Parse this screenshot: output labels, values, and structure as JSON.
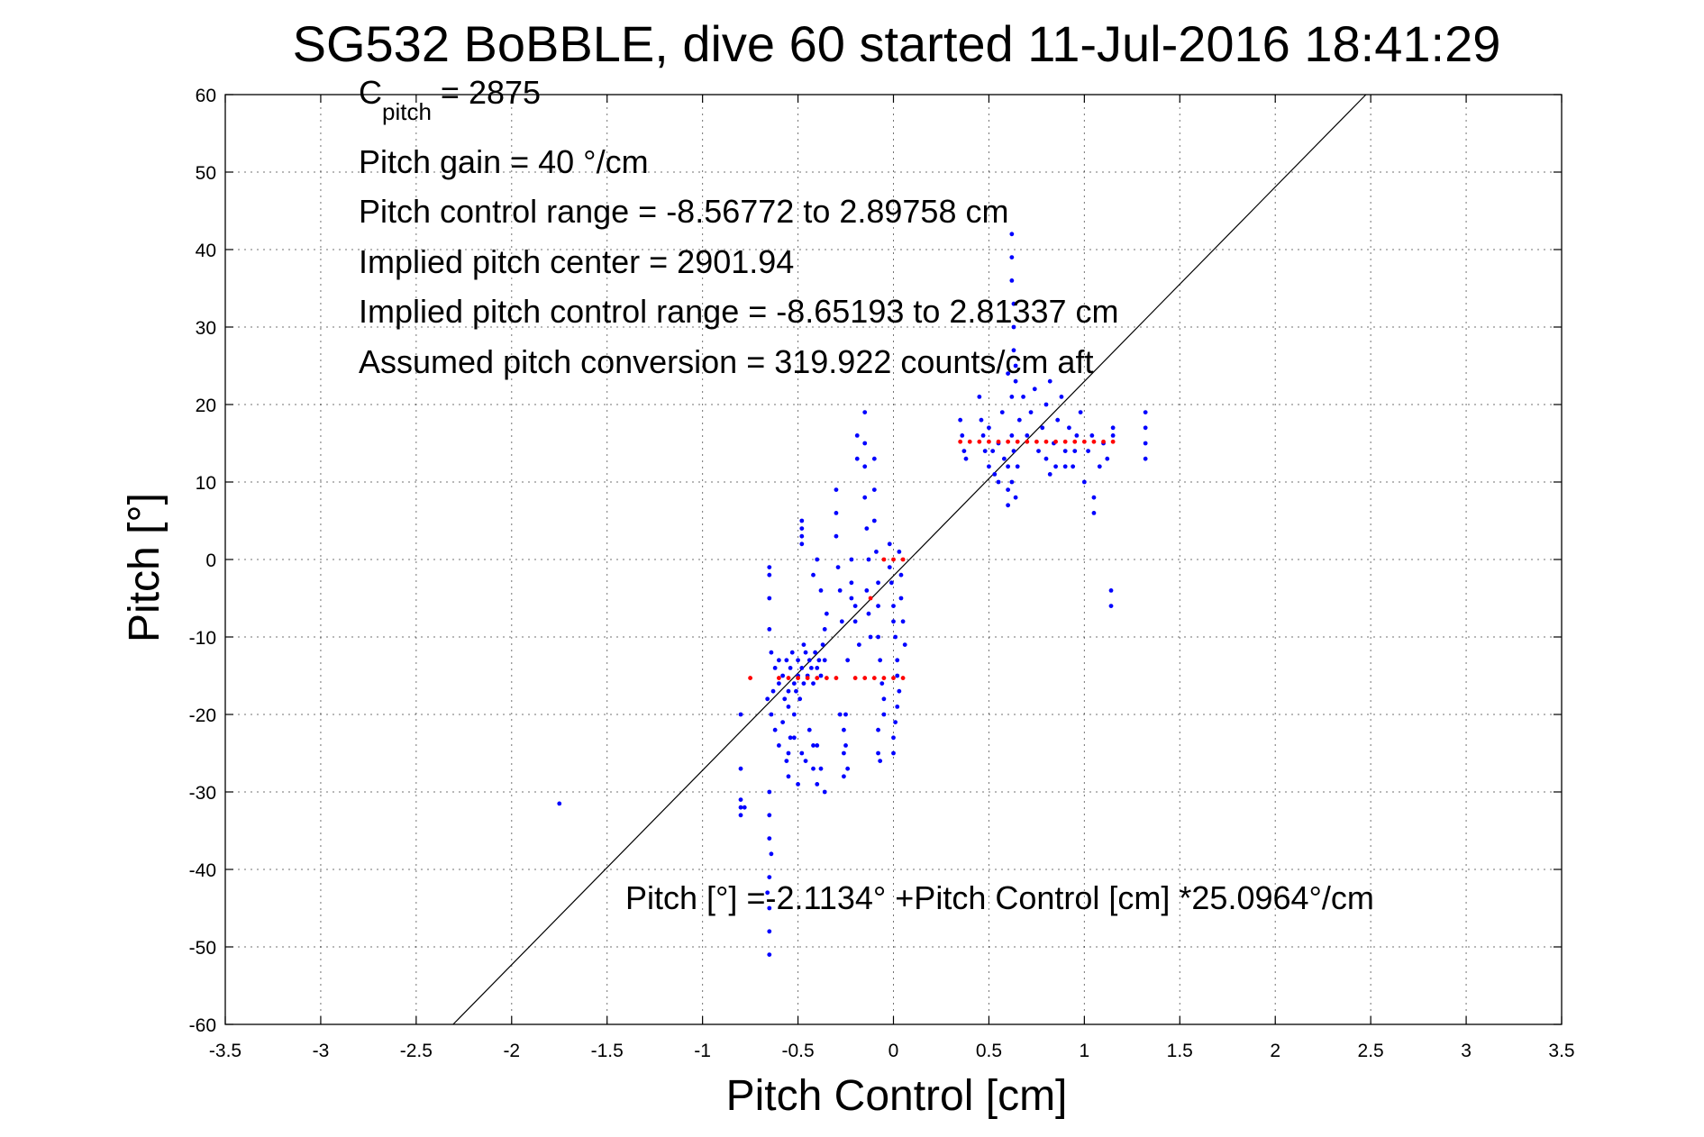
{
  "chart_data": {
    "type": "scatter",
    "title": "SG532 BoBBLE, dive 60 started 11-Jul-2016 18:41:29",
    "xlabel": "Pitch Control [cm]",
    "ylabel": "Pitch [°]",
    "xlim": [
      -3.5,
      3.5
    ],
    "ylim": [
      -60,
      60
    ],
    "xticks": [
      -3.5,
      -3,
      -2.5,
      -2,
      -1.5,
      -1,
      -0.5,
      0,
      0.5,
      1,
      1.5,
      2,
      2.5,
      3,
      3.5
    ],
    "xtick_labels": [
      "-3.5",
      "-3",
      "-2.5",
      "-2",
      "-1.5",
      "-1",
      "-0.5",
      "0",
      "0.5",
      "1",
      "1.5",
      "2",
      "2.5",
      "3",
      "3.5"
    ],
    "yticks": [
      -60,
      -50,
      -40,
      -30,
      -20,
      -10,
      0,
      10,
      20,
      30,
      40,
      50,
      60
    ],
    "ytick_labels": [
      "-60",
      "-50",
      "-40",
      "-30",
      "-20",
      "-10",
      "0",
      "10",
      "20",
      "30",
      "40",
      "50",
      "60"
    ],
    "grid": true,
    "annotations": {
      "cpitch_main": "C",
      "cpitch_sub": "pitch",
      "cpitch_value": " = 2875",
      "pitch_gain": "Pitch gain = 40 °/cm",
      "control_range": "Pitch control range = -8.56772 to 2.89758 cm",
      "implied_center": "Implied pitch center = 2901.94",
      "implied_range": "Implied pitch control range = -8.65193 to 2.81337 cm",
      "conversion": "Assumed pitch conversion = 319.922 counts/cm aft",
      "fit_equation": "Pitch [°] =-2.1134° +Pitch Control [cm] *25.0964°/cm"
    },
    "fit_line": {
      "intercept": -2.1134,
      "slope": 25.0964,
      "color": "#000000"
    },
    "series": [
      {
        "color": "#0000ff",
        "points": [
          [
            -0.62,
            -14
          ],
          [
            -0.6,
            -16
          ],
          [
            -0.58,
            -15
          ],
          [
            -0.56,
            -13
          ],
          [
            -0.55,
            -17
          ],
          [
            -0.54,
            -14
          ],
          [
            -0.52,
            -16
          ],
          [
            -0.5,
            -13
          ],
          [
            -0.5,
            -15
          ],
          [
            -0.48,
            -14
          ],
          [
            -0.47,
            -16
          ],
          [
            -0.46,
            -12
          ],
          [
            -0.45,
            -15
          ],
          [
            -0.44,
            -13
          ],
          [
            -0.43,
            -14
          ],
          [
            -0.42,
            -16
          ],
          [
            -0.41,
            -12
          ],
          [
            -0.4,
            -14
          ],
          [
            -0.39,
            -13
          ],
          [
            -0.38,
            -15
          ],
          [
            -0.37,
            -11
          ],
          [
            -0.36,
            -13
          ],
          [
            -0.57,
            -18
          ],
          [
            -0.55,
            -19
          ],
          [
            -0.53,
            -12
          ],
          [
            -0.51,
            -17
          ],
          [
            -0.49,
            -18
          ],
          [
            -0.47,
            -11
          ],
          [
            -0.6,
            -13
          ],
          [
            -0.63,
            -17
          ],
          [
            -0.64,
            -20
          ],
          [
            -0.62,
            -22
          ],
          [
            -0.6,
            -24
          ],
          [
            -0.58,
            -21
          ],
          [
            -0.56,
            -26
          ],
          [
            -0.54,
            -23
          ],
          [
            -0.52,
            -20
          ],
          [
            -0.48,
            -25
          ],
          [
            -0.65,
            -1
          ],
          [
            -0.65,
            -2
          ],
          [
            -0.65,
            -5
          ],
          [
            -0.65,
            -9
          ],
          [
            -0.64,
            -12
          ],
          [
            -0.66,
            -18
          ],
          [
            -0.65,
            -30
          ],
          [
            -0.65,
            -33
          ],
          [
            -0.65,
            -36
          ],
          [
            -0.65,
            -41
          ],
          [
            -0.65,
            -45
          ],
          [
            -0.65,
            -48
          ],
          [
            -0.65,
            -51
          ],
          [
            -0.66,
            -43
          ],
          [
            -0.64,
            -38
          ],
          [
            -0.8,
            -20
          ],
          [
            -0.8,
            -27
          ],
          [
            -0.8,
            -31
          ],
          [
            -0.8,
            -32
          ],
          [
            -0.8,
            -33
          ],
          [
            -0.78,
            -32
          ],
          [
            -1.75,
            -31.5
          ],
          [
            -0.48,
            5
          ],
          [
            -0.48,
            4
          ],
          [
            -0.48,
            3
          ],
          [
            -0.48,
            2
          ],
          [
            -0.42,
            -2
          ],
          [
            -0.4,
            0
          ],
          [
            -0.38,
            -4
          ],
          [
            -0.36,
            -9
          ],
          [
            -0.35,
            -7
          ],
          [
            -0.42,
            -24
          ],
          [
            -0.42,
            -27
          ],
          [
            -0.4,
            -29
          ],
          [
            -0.36,
            -30
          ],
          [
            -0.38,
            -27
          ],
          [
            -0.4,
            -24
          ],
          [
            -0.55,
            -25
          ],
          [
            -0.55,
            -28
          ],
          [
            -0.52,
            -23
          ],
          [
            -0.5,
            -29
          ],
          [
            -0.46,
            -26
          ],
          [
            -0.44,
            -22
          ],
          [
            -0.3,
            9
          ],
          [
            -0.3,
            6
          ],
          [
            -0.3,
            3
          ],
          [
            -0.29,
            -1
          ],
          [
            -0.28,
            -4
          ],
          [
            -0.27,
            -8
          ],
          [
            -0.26,
            -22
          ],
          [
            -0.26,
            -25
          ],
          [
            -0.26,
            -28
          ],
          [
            -0.25,
            -24
          ],
          [
            -0.24,
            -27
          ],
          [
            -0.25,
            -20
          ],
          [
            -0.28,
            -20
          ],
          [
            -0.24,
            -13
          ],
          [
            -0.22,
            -3
          ],
          [
            -0.22,
            0
          ],
          [
            -0.22,
            -5
          ],
          [
            -0.2,
            -8
          ],
          [
            -0.2,
            -6
          ],
          [
            -0.18,
            -11
          ],
          [
            -0.19,
            16
          ],
          [
            -0.19,
            13
          ],
          [
            -0.15,
            19
          ],
          [
            -0.15,
            15
          ],
          [
            -0.15,
            12
          ],
          [
            -0.15,
            8
          ],
          [
            -0.14,
            4
          ],
          [
            -0.13,
            0
          ],
          [
            -0.14,
            -4
          ],
          [
            -0.13,
            -7
          ],
          [
            -0.12,
            -10
          ],
          [
            -0.1,
            13
          ],
          [
            -0.1,
            9
          ],
          [
            -0.1,
            5
          ],
          [
            -0.09,
            1
          ],
          [
            -0.08,
            -3
          ],
          [
            -0.08,
            -6
          ],
          [
            -0.08,
            -10
          ],
          [
            -0.07,
            -13
          ],
          [
            -0.06,
            -16
          ],
          [
            -0.05,
            -18
          ],
          [
            -0.05,
            -20
          ],
          [
            -0.08,
            -22
          ],
          [
            -0.08,
            -25
          ],
          [
            -0.07,
            -26
          ],
          [
            -0.02,
            -1
          ],
          [
            -0.02,
            2
          ],
          [
            -0.01,
            -3
          ],
          [
            0.0,
            -6
          ],
          [
            0.0,
            -8
          ],
          [
            0.01,
            -10
          ],
          [
            0.02,
            -13
          ],
          [
            0.02,
            -15
          ],
          [
            0.03,
            -17
          ],
          [
            0.02,
            -19
          ],
          [
            0.01,
            -21
          ],
          [
            0.0,
            -23
          ],
          [
            0.0,
            -25
          ],
          [
            0.03,
            1
          ],
          [
            0.04,
            -2
          ],
          [
            0.04,
            -5
          ],
          [
            0.05,
            -8
          ],
          [
            0.06,
            -11
          ],
          [
            0.35,
            18
          ],
          [
            0.36,
            16
          ],
          [
            0.37,
            14
          ],
          [
            0.38,
            13
          ],
          [
            0.45,
            21
          ],
          [
            0.46,
            18
          ],
          [
            0.47,
            16
          ],
          [
            0.48,
            14
          ],
          [
            0.5,
            17
          ],
          [
            0.5,
            12
          ],
          [
            0.52,
            14
          ],
          [
            0.53,
            11
          ],
          [
            0.55,
            10
          ],
          [
            0.55,
            15
          ],
          [
            0.57,
            19
          ],
          [
            0.58,
            13
          ],
          [
            0.6,
            9
          ],
          [
            0.6,
            7
          ],
          [
            0.6,
            12
          ],
          [
            0.62,
            16
          ],
          [
            0.62,
            10
          ],
          [
            0.63,
            14
          ],
          [
            0.64,
            8
          ],
          [
            0.65,
            12
          ],
          [
            0.62,
            42
          ],
          [
            0.62,
            39
          ],
          [
            0.62,
            36
          ],
          [
            0.63,
            33
          ],
          [
            0.63,
            30
          ],
          [
            0.63,
            27
          ],
          [
            0.64,
            25
          ],
          [
            0.64,
            23
          ],
          [
            0.62,
            21
          ],
          [
            0.6,
            24
          ],
          [
            0.66,
            18
          ],
          [
            0.68,
            21
          ],
          [
            0.7,
            16
          ],
          [
            0.72,
            19
          ],
          [
            0.74,
            22
          ],
          [
            0.76,
            14
          ],
          [
            0.78,
            17
          ],
          [
            0.8,
            20
          ],
          [
            0.82,
            23
          ],
          [
            0.84,
            15
          ],
          [
            0.86,
            18
          ],
          [
            0.88,
            21
          ],
          [
            0.9,
            14
          ],
          [
            0.92,
            17
          ],
          [
            0.94,
            12
          ],
          [
            0.96,
            16
          ],
          [
            0.98,
            19
          ],
          [
            0.8,
            13
          ],
          [
            0.82,
            11
          ],
          [
            0.85,
            12
          ],
          [
            0.9,
            12
          ],
          [
            0.95,
            14
          ],
          [
            1.0,
            10
          ],
          [
            1.02,
            14
          ],
          [
            1.04,
            16
          ],
          [
            1.05,
            8
          ],
          [
            1.05,
            6
          ],
          [
            1.08,
            12
          ],
          [
            1.1,
            15
          ],
          [
            1.12,
            13
          ],
          [
            1.15,
            17
          ],
          [
            1.15,
            16
          ],
          [
            1.14,
            -4
          ],
          [
            1.14,
            -6
          ],
          [
            1.32,
            19
          ],
          [
            1.32,
            17
          ],
          [
            1.32,
            15
          ],
          [
            1.32,
            13
          ]
        ]
      },
      {
        "color": "#ff0000",
        "points": [
          [
            -0.75,
            -15.3
          ],
          [
            -0.6,
            -15.3
          ],
          [
            -0.55,
            -15.3
          ],
          [
            -0.5,
            -15.3
          ],
          [
            -0.45,
            -15.3
          ],
          [
            -0.4,
            -15.3
          ],
          [
            -0.35,
            -15.3
          ],
          [
            -0.3,
            -15.3
          ],
          [
            -0.2,
            -15.3
          ],
          [
            -0.15,
            -15.3
          ],
          [
            -0.1,
            -15.3
          ],
          [
            -0.05,
            -15.3
          ],
          [
            0.0,
            -15.3
          ],
          [
            0.05,
            -15.3
          ],
          [
            -0.05,
            0
          ],
          [
            0.0,
            0
          ],
          [
            0.05,
            0
          ],
          [
            -0.12,
            -5
          ],
          [
            0.35,
            15.2
          ],
          [
            0.4,
            15.2
          ],
          [
            0.45,
            15.2
          ],
          [
            0.5,
            15.2
          ],
          [
            0.55,
            15.2
          ],
          [
            0.6,
            15.2
          ],
          [
            0.65,
            15.2
          ],
          [
            0.7,
            15.2
          ],
          [
            0.75,
            15.2
          ],
          [
            0.8,
            15.2
          ],
          [
            0.85,
            15.2
          ],
          [
            0.9,
            15.2
          ],
          [
            0.95,
            15.2
          ],
          [
            1.0,
            15.2
          ],
          [
            1.05,
            15.2
          ],
          [
            1.1,
            15.2
          ],
          [
            1.15,
            15.2
          ]
        ]
      }
    ]
  }
}
